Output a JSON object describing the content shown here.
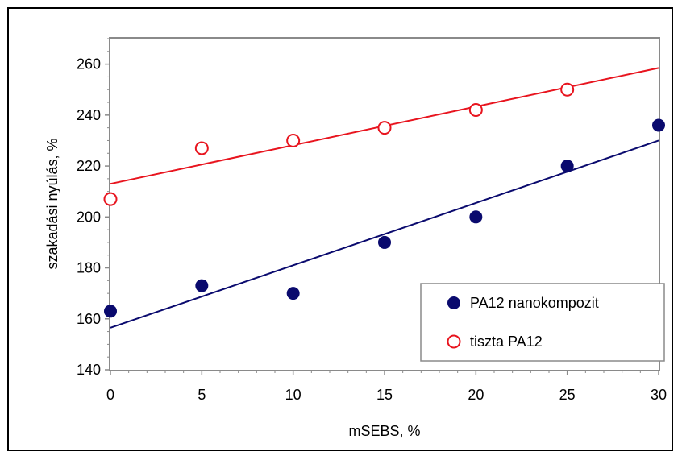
{
  "chart_data": {
    "type": "scatter",
    "xlabel": "mSEBS, %",
    "ylabel": "szakadási nyúlás, %",
    "xlim": [
      0,
      30
    ],
    "ylim": [
      140,
      270
    ],
    "x_ticks": [
      0,
      5,
      10,
      15,
      20,
      25,
      30
    ],
    "y_ticks": [
      140,
      160,
      180,
      200,
      220,
      240,
      260
    ],
    "grid": false,
    "legend_position": "bottom-right",
    "series": [
      {
        "name": "PA12 nanokompozit",
        "marker": "filled-circle",
        "color": "#0a0a6e",
        "points": [
          [
            0,
            163
          ],
          [
            5,
            173
          ],
          [
            10,
            170
          ],
          [
            15,
            190
          ],
          [
            20,
            200
          ],
          [
            25,
            220
          ],
          [
            30,
            236
          ]
        ],
        "trendline": {
          "x": [
            0,
            30
          ],
          "y": [
            156.5,
            230
          ]
        }
      },
      {
        "name": "tiszta PA12",
        "marker": "open-circle",
        "color": "#e8141e",
        "points": [
          [
            0,
            207
          ],
          [
            5,
            227
          ],
          [
            10,
            230
          ],
          [
            15,
            235
          ],
          [
            20,
            242
          ],
          [
            25,
            250
          ]
        ],
        "trendline": {
          "x": [
            0,
            30
          ],
          "y": [
            213,
            258.5
          ]
        }
      }
    ]
  }
}
